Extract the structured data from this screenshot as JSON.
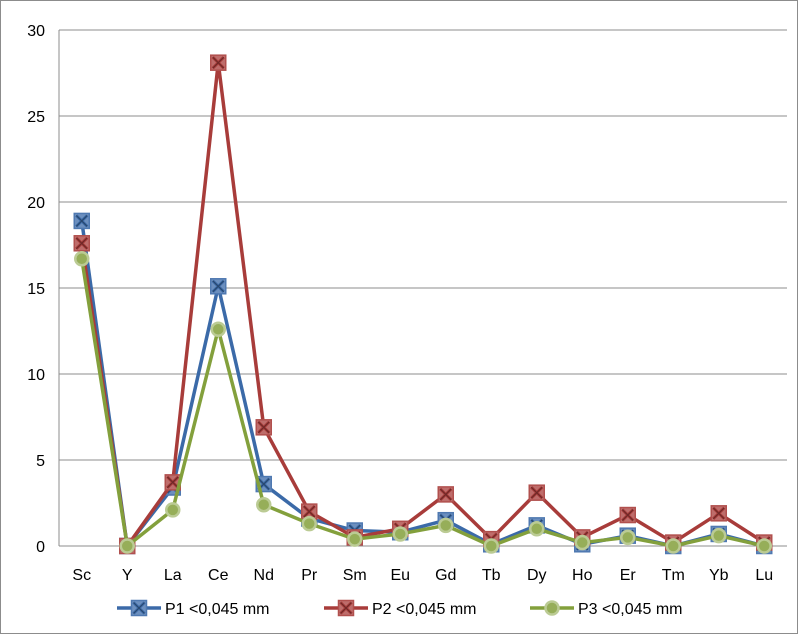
{
  "chart_data": {
    "type": "line",
    "categories": [
      "Sc",
      "Y",
      "La",
      "Ce",
      "Nd",
      "Pr",
      "Sm",
      "Eu",
      "Gd",
      "Tb",
      "Dy",
      "Ho",
      "Er",
      "Tm",
      "Yb",
      "Lu"
    ],
    "ylim": [
      0,
      30
    ],
    "y_ticks": [
      "0",
      "5",
      "10",
      "15",
      "20",
      "25",
      "30"
    ],
    "grid": true,
    "legend_position": "bottom",
    "series": [
      {
        "name": "P1 <0,045 mm",
        "color": "#3b6aa8",
        "marker": "x-square",
        "values": [
          18.9,
          0.0,
          3.4,
          15.1,
          3.6,
          1.6,
          0.9,
          0.8,
          1.5,
          0.1,
          1.2,
          0.1,
          0.6,
          0.0,
          0.7,
          0.0
        ]
      },
      {
        "name": "P2 <0,045 mm",
        "color": "#a83c3a",
        "marker": "x-square",
        "values": [
          17.6,
          0.0,
          3.7,
          28.1,
          6.9,
          2.0,
          0.5,
          1.0,
          3.0,
          0.4,
          3.1,
          0.5,
          1.8,
          0.2,
          1.9,
          0.2
        ]
      },
      {
        "name": "P3 <0,045 mm",
        "color": "#83a03c",
        "marker": "circle",
        "values": [
          16.7,
          0.0,
          2.1,
          12.6,
          2.4,
          1.3,
          0.4,
          0.7,
          1.2,
          0.0,
          1.0,
          0.2,
          0.5,
          0.0,
          0.6,
          0.0
        ]
      }
    ]
  }
}
